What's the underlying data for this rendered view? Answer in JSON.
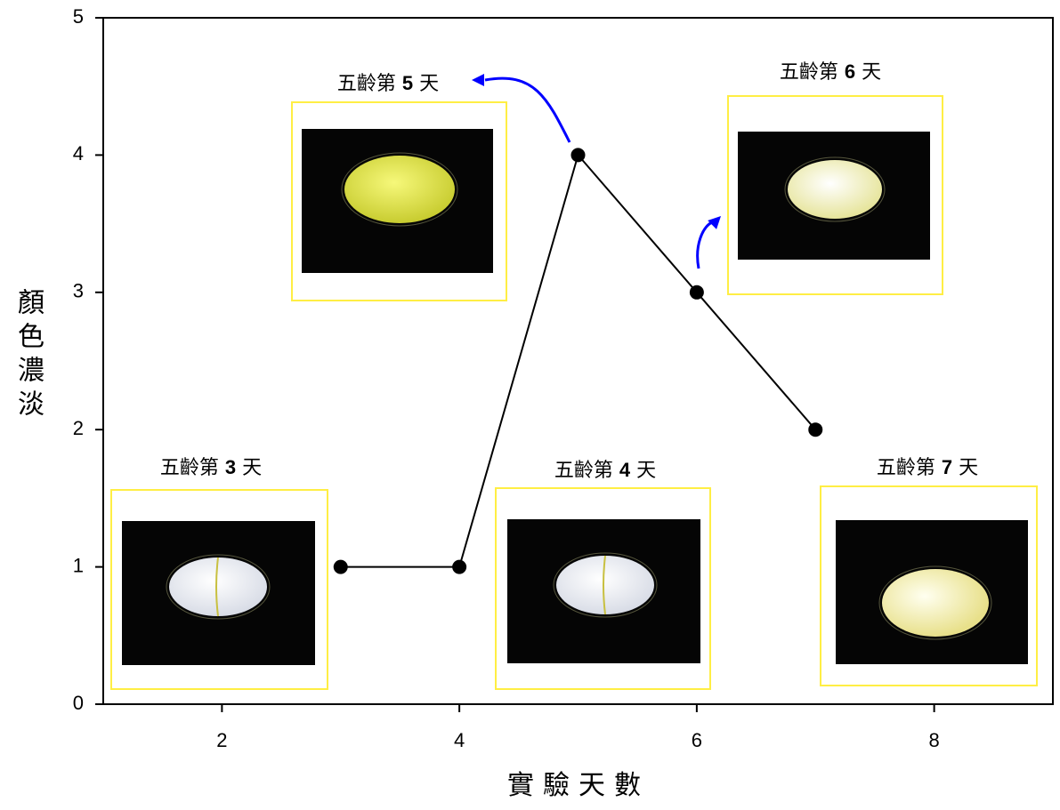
{
  "chart_data": {
    "type": "line",
    "x_label": "實驗天數",
    "y_label": "顏色濃淡",
    "x": [
      3,
      4,
      5,
      6,
      7
    ],
    "series": [
      {
        "color": "#000000",
        "values": [
          1,
          1,
          4,
          3,
          2
        ]
      }
    ],
    "xlim": [
      1,
      9
    ],
    "xticks": [
      2,
      4,
      6,
      8
    ],
    "ylim": [
      0,
      5
    ],
    "yticks": [
      0,
      1,
      2,
      3,
      4,
      5
    ],
    "annotations": [
      "五齡第 3 天",
      "五齡第 4 天",
      "五齡第 5 天",
      "五齡第 6 天",
      "五齡第 7 天"
    ],
    "arrow_color": "#0000ff",
    "frame_color": "#ffee44"
  }
}
